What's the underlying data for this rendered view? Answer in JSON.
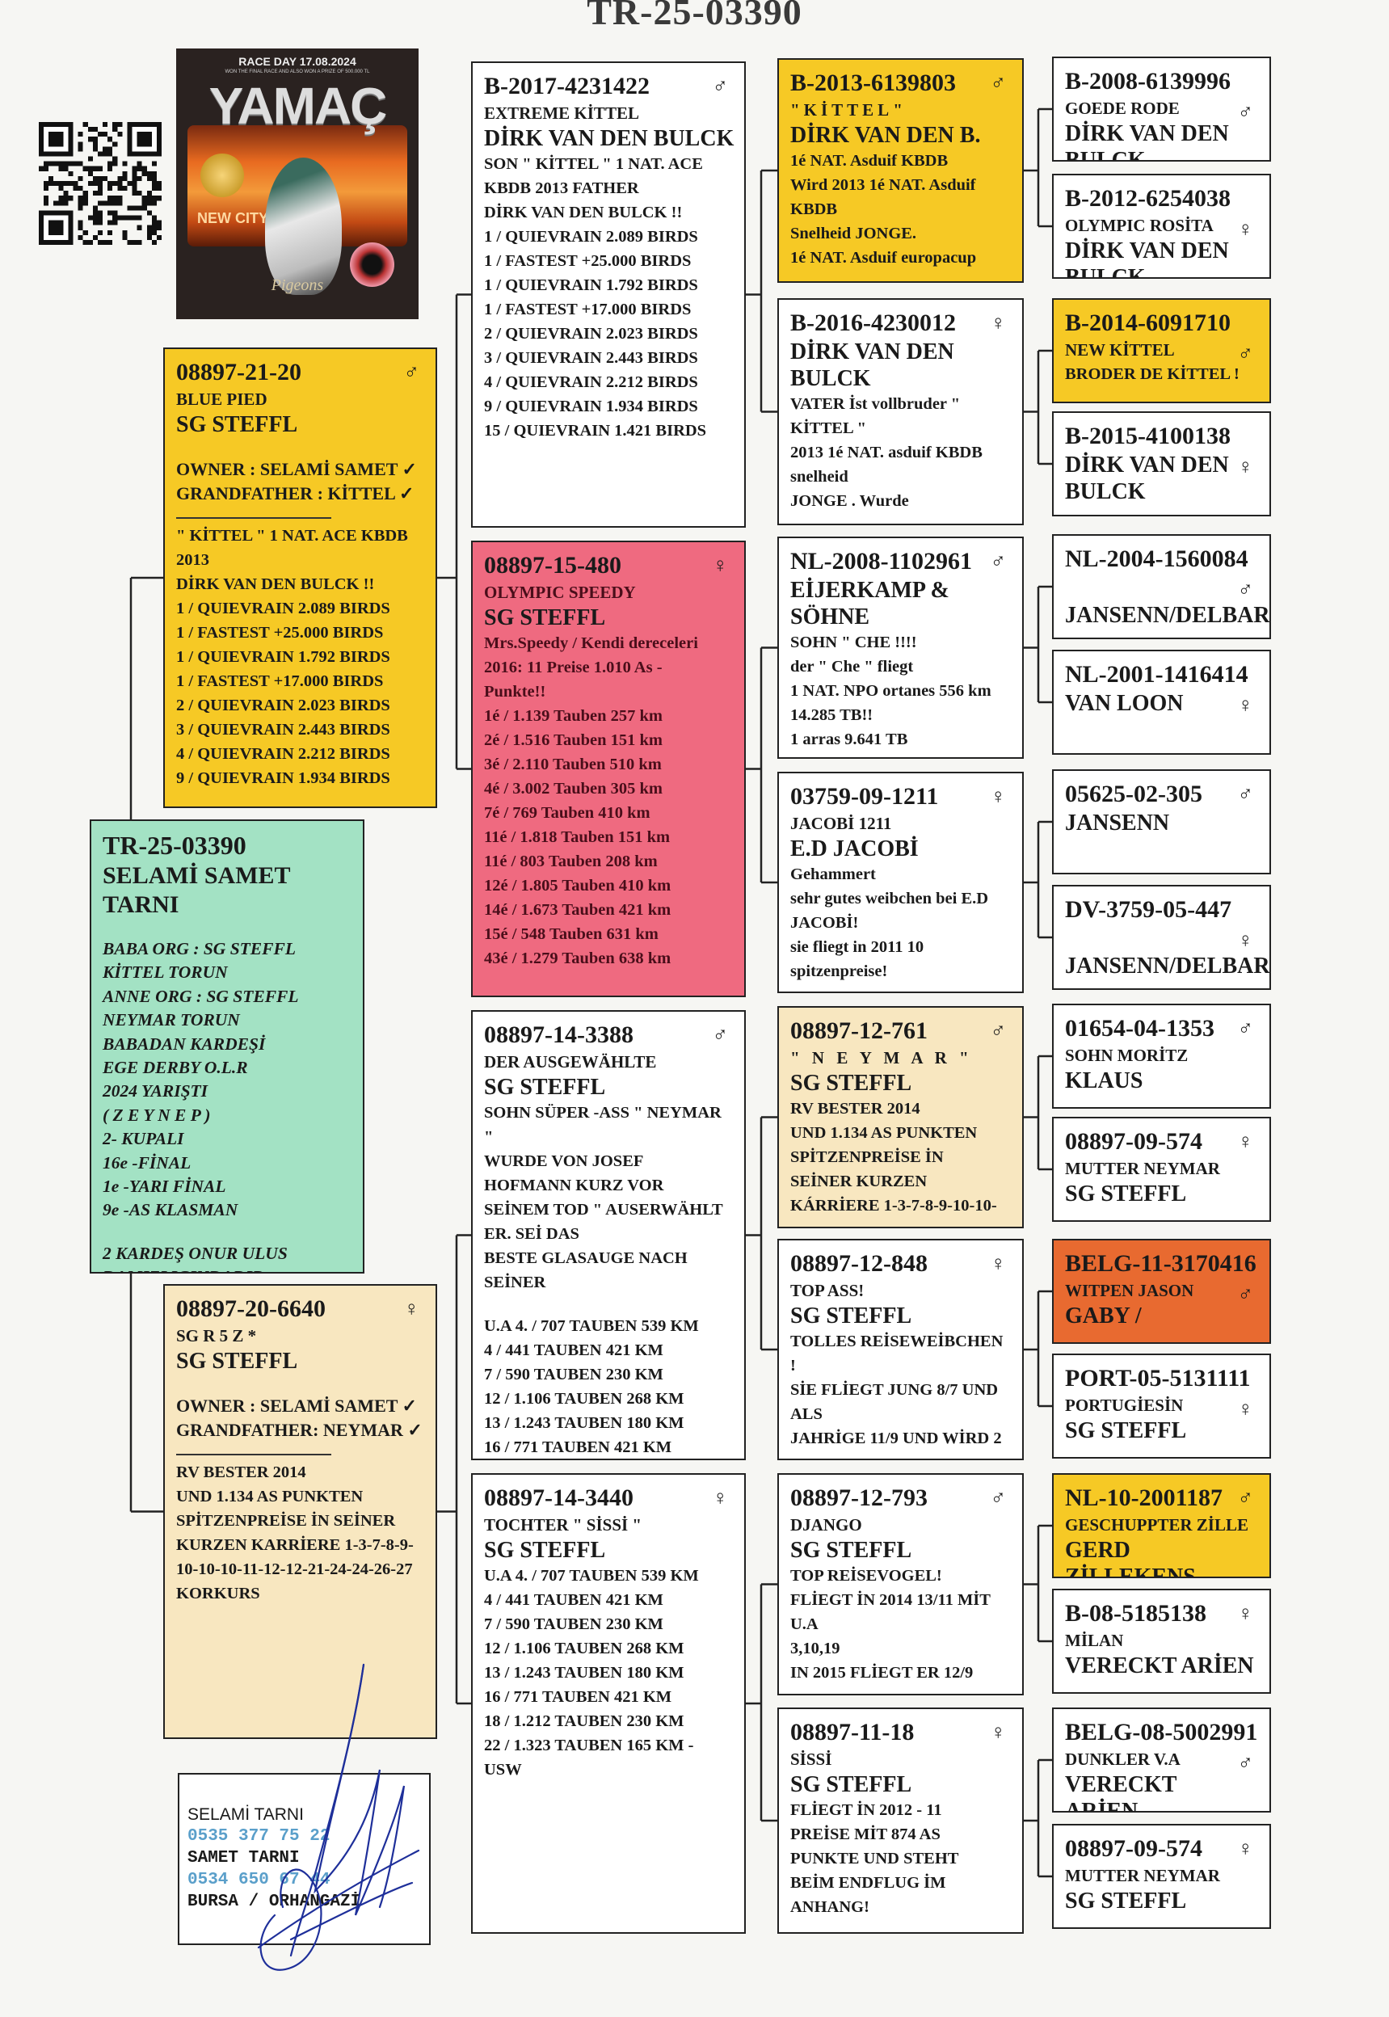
{
  "document": {
    "title": "TR-25-03390"
  },
  "logo": {
    "race_day": "RACE DAY 17.08.2024",
    "tagline": "WON THE FINAL RACE AND ALSO WON A PRIZE OF 500.000 TL",
    "brand": "YAMAÇ",
    "city": "NEW CITY",
    "script": "Pigeons"
  },
  "colors": {
    "sire_card": "#f6c925",
    "subject_card": "#a3e2c4",
    "dam_card": "#f8e7c0",
    "pink_card": "#ef6a80",
    "orange_card": "#e86a30",
    "phone_text": "#5a9fca",
    "signature_ink": "#1e2f9a"
  },
  "sire": {
    "ring": "08897-21-20",
    "sex": "♂",
    "sub": "BLUE PIED",
    "breeder": "SG STEFFL",
    "owner_lines": [
      "OWNER : SELAMİ SAMET ✓",
      "GRANDFATHER : KİTTEL ✓"
    ],
    "notes": [
      " \" KİTTEL \" 1 NAT. ACE KBDB",
      "2013",
      "DİRK VAN DEN BULCK !!",
      "1 / QUIEVRAIN 2.089 BIRDS",
      "1 / FASTEST +25.000 BIRDS",
      "1 / QUIEVRAIN 1.792 BIRDS",
      "1 / FASTEST +17.000 BIRDS",
      "2 / QUIEVRAIN 2.023 BIRDS",
      "3 / QUIEVRAIN 2.443 BIRDS",
      "4 / QUIEVRAIN 2.212 BIRDS",
      "9 / QUIEVRAIN 1.934 BIRDS"
    ]
  },
  "subject": {
    "ring": "TR-25-03390",
    "breeder": "SELAMİ SAMET TARNI",
    "notes": [
      "BABA ORG : SG STEFFL",
      "KİTTEL TORUN",
      "ANNE ORG : SG STEFFL",
      "NEYMAR TORUN",
      "BABADAN KARDEŞİ",
      "EGE DERBY O.L.R",
      "2024 YARIŞTI",
      "( Z E Y N E P )",
      "2- KUPALI",
      "16e -FİNAL",
      "1e -YARI FİNAL",
      "9e -AS KLASMAN",
      "",
      "2 KARDEŞ ONUR ULUS",
      "DAMIZLIGINDADIR ..."
    ]
  },
  "dam": {
    "ring": "08897-20-6640",
    "sex": "♀",
    "sub": "SG R 5 Z *",
    "breeder": "SG STEFFL",
    "owner_lines": [
      "OWNER : SELAMİ SAMET ✓",
      "GRANDFATHER: NEYMAR ✓"
    ],
    "notes": [
      "RV BESTER 2014",
      "UND 1.134 AS PUNKTEN",
      "SPİTZENPREİSE İN SEİNER",
      "KURZEN KARRİERE 1-3-7-8-9-",
      "10-10-10-11-12-12-21-24-24-26-27",
      "KORKURS"
    ]
  },
  "grandparents": [
    {
      "ring": "B-2017-4231422",
      "sex": "♂",
      "sub": "EXTREME KİTTEL",
      "breeder": "DİRK VAN DEN BULCK",
      "notes": [
        "SON \" KİTTEL \" 1 NAT. ACE",
        "KBDB 2013 FATHER",
        "DİRK VAN DEN BULCK !!",
        "1 / QUIEVRAIN 2.089 BIRDS",
        "1 / FASTEST +25.000 BIRDS",
        "1 / QUIEVRAIN 1.792 BIRDS",
        "1 / FASTEST +17.000 BIRDS",
        "2 / QUIEVRAIN 2.023 BIRDS",
        "3 / QUIEVRAIN 2.443 BIRDS",
        "4 / QUIEVRAIN 2.212 BIRDS",
        "9 / QUIEVRAIN 1.934 BIRDS",
        "15 / QUIEVRAIN 1.421 BIRDS"
      ]
    },
    {
      "ring": "08897-15-480",
      "sex": "♀",
      "sub": "OLYMPIC SPEEDY",
      "breeder": "SG STEFFL",
      "notes": [
        "Mrs.Speedy / Kendi dereceleri",
        "2016: 11 Preise 1.010 As -",
        "Punkte!!",
        "1é / 1.139 Tauben 257 km",
        "2é / 1.516 Tauben 151 km",
        "3é / 2.110 Tauben 510 km",
        "4é / 3.002 Tauben 305 km",
        "7é / 769 Tauben 410 km",
        "11é / 1.818 Tauben 151 km",
        "11é / 803 Tauben 208 km",
        "12é / 1.805 Tauben 410 km",
        "14é / 1.673 Tauben 421 km",
        "15é / 548 Tauben 631 km",
        "43é / 1.279 Tauben 638 km"
      ]
    },
    {
      "ring": "08897-14-3388",
      "sex": "♂",
      "sub": "DER AUSGEWÄHLTE",
      "breeder": "SG STEFFL",
      "notes": [
        "SOHN SÜPER -ASS \" NEYMAR",
        "\"",
        "WURDE VON JOSEF",
        "HOFMANN KURZ VOR",
        "SEİNEM TOD \" AUSERWÄHLT",
        "ER. SEİ DAS",
        "BESTE GLASAUGE NACH",
        "SEİNER",
        "",
        "U.A 4. / 707 TAUBEN 539 KM",
        "4 / 441 TAUBEN 421 KM",
        "7 / 590 TAUBEN 230 KM",
        "12 / 1.106 TAUBEN 268 KM",
        "13 / 1.243 TAUBEN 180 KM",
        "16 / 771 TAUBEN 421 KM"
      ]
    },
    {
      "ring": "08897-14-3440",
      "sex": "♀",
      "sub": "TOCHTER \" SİSSİ \"",
      "breeder": "SG STEFFL",
      "notes": [
        "U.A 4. / 707 TAUBEN 539 KM",
        "4 / 441 TAUBEN 421 KM",
        "7 / 590 TAUBEN 230 KM",
        "12 / 1.106 TAUBEN 268 KM",
        "13 / 1.243 TAUBEN 180 KM",
        "16 / 771 TAUBEN 421 KM",
        "18 / 1.212 TAUBEN 230 KM",
        "22 / 1.323 TAUBEN 165 KM -",
        "USW"
      ]
    }
  ],
  "great_grandparents": [
    {
      "ring": "B-2013-6139803",
      "sex": "♂",
      "sub": "\"KİTTEL\"",
      "breeder": "DİRK VAN DEN B.",
      "notes": [
        "1é NAT. Asduif KBDB",
        "Wird 2013 1é NAT. Asduif",
        "KBDB",
        "Snelheid JONGE.",
        "1é NAT. Asduif europacup"
      ]
    },
    {
      "ring": "B-2016-4230012",
      "sex": "♀",
      "breeder": "DİRK VAN DEN BULCK",
      "notes": [
        "VATER İst vollbruder \"",
        "KİTTEL \"",
        "2013 1é NAT. asduif KBDB",
        "snelheid",
        "JONGE . Wurde"
      ]
    },
    {
      "ring": "NL-2008-1102961",
      "sex": "♂",
      "breeder": "EİJERKAMP & SÖHNE",
      "notes": [
        "SOHN \" CHE !!!!",
        "der \" Che \" fliegt",
        "1 NAT. NPO ortanes 556 km",
        "14.285 TB!!",
        "1 arras 9.641 TB"
      ]
    },
    {
      "ring": "03759-09-1211",
      "sex": "♀",
      "sub": "JACOBİ 1211",
      "breeder": "E.D JACOBİ",
      "notes": [
        "Gehammert",
        "sehr gutes weibchen bei E.D",
        "JACOBİ!",
        "sie fliegt in 2011 10",
        "spitzenpreise!"
      ]
    },
    {
      "ring": "08897-12-761",
      "sex": "♂",
      "sub": "\" N E Y M A R \"",
      "breeder": "SG STEFFL",
      "notes": [
        "RV BESTER 2014",
        "UND 1.134 AS PUNKTEN",
        "SPİTZENPREİSE İN",
        "SEİNER KURZEN",
        "KÁRRİERE 1-3-7-8-9-10-10-"
      ]
    },
    {
      "ring": "08897-12-848",
      "sex": "♀",
      "sub": "TOP ASS!",
      "breeder": "SG STEFFL",
      "notes": [
        "TOLLES REİSEWEİBCHEN",
        "!",
        "SİE FLİEGT JUNG 8/7 UND",
        "ALS",
        "JAHRİGE 11/9 UND WİRD 2"
      ]
    },
    {
      "ring": "08897-12-793",
      "sex": "♂",
      "sub": "DJANGO",
      "breeder": "SG STEFFL",
      "notes": [
        "TOP REİSEVOGEL!",
        "FLİEGT İN 2014 13/11 MİT",
        "U.A",
        "3,10,19",
        "IN 2015 FLİEGT ER 12/9"
      ]
    },
    {
      "ring": "08897-11-18",
      "sex": "♀",
      "sub": "SİSSİ",
      "breeder": "SG STEFFL",
      "notes": [
        "FLİEGT İN 2012 - 11",
        "PREİSE MİT 874 AS",
        "PUNKTE UND STEHT",
        "BEİM ENDFLUG İM",
        "ANHANG!"
      ]
    }
  ],
  "gg_grandparents": [
    {
      "ring": "B-2008-6139996",
      "sex": "♂",
      "sub": "GOEDE RODE",
      "breeder": "DİRK VAN DEN BULCK"
    },
    {
      "ring": "B-2012-6254038",
      "sex": "♀",
      "sub": "OLYMPIC ROSİTA",
      "breeder": "DİRK VAN DEN BULCK"
    },
    {
      "ring": "B-2014-6091710",
      "sex": "♂",
      "sub": "NEW KİTTEL",
      "notes": [
        "BRODER DE KİTTEL !"
      ]
    },
    {
      "ring": "B-2015-4100138",
      "sex": "♀",
      "breeder": "DİRK VAN DEN BULCK"
    },
    {
      "ring": "NL-2004-1560084",
      "sex": "♂",
      "breeder": "JANSENN/DELBAR"
    },
    {
      "ring": "NL-2001-1416414",
      "sex": "♀",
      "breeder": "VAN LOON"
    },
    {
      "ring": "05625-02-305",
      "sex": "♂",
      "breeder": "JANSENN"
    },
    {
      "ring": "DV-3759-05-447",
      "sex": "♀",
      "breeder": "JANSENN/DELBAR"
    },
    {
      "ring": "01654-04-1353",
      "sex": "♂",
      "sub": "SOHN MORİTZ",
      "breeder": "KLAUS"
    },
    {
      "ring": "08897-09-574",
      "sex": "♀",
      "sub": "MUTTER NEYMAR",
      "breeder": "SG STEFFL"
    },
    {
      "ring": "BELG-11-3170416",
      "sex": "♂",
      "sub": "WITPEN JASON",
      "breeder": "GABY /"
    },
    {
      "ring": "PORT-05-5131111",
      "sex": "♀",
      "sub": "PORTUGİESİN",
      "breeder": "SG STEFFL"
    },
    {
      "ring": "NL-10-2001187",
      "sex": "♂",
      "sub": "GESCHUPPTER ZİLLE",
      "breeder": "GERD ZİLLEKENS"
    },
    {
      "ring": "B-08-5185138",
      "sex": "♀",
      "sub": "MİLAN",
      "breeder": "VERECKT ARİEN"
    },
    {
      "ring": "BELG-08-5002991",
      "sex": "♂",
      "sub": "DUNKLER V.A",
      "breeder": "VERECKT ARİEN"
    },
    {
      "ring": "08897-09-574",
      "sex": "♀",
      "sub": "MUTTER NEYMAR",
      "breeder": "SG STEFFL"
    }
  ],
  "contact": {
    "name1": "SELAMİ TARNI",
    "phone1": "0535 377 75 22",
    "name2": "SAMET TARNI",
    "phone2": "0534 650 67 44",
    "location": "BURSA / ORHANGAZİ"
  }
}
